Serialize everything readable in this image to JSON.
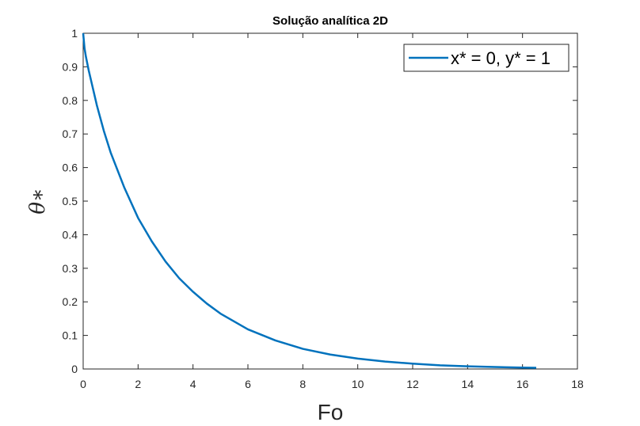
{
  "chart_data": {
    "type": "line",
    "title": "Solução analítica 2D",
    "xlabel": "Fo",
    "ylabel": "θ∗",
    "xlim": [
      0,
      18
    ],
    "ylim": [
      0,
      1
    ],
    "xticks": [
      0,
      2,
      4,
      6,
      8,
      10,
      12,
      14,
      16,
      18
    ],
    "yticks": [
      0,
      0.1,
      0.2,
      0.3,
      0.4,
      0.5,
      0.6,
      0.7,
      0.8,
      0.9,
      1
    ],
    "xtick_labels": [
      "0",
      "2",
      "4",
      "6",
      "8",
      "10",
      "12",
      "14",
      "16",
      "18"
    ],
    "ytick_labels": [
      "0",
      "0.1",
      "0.2",
      "0.3",
      "0.4",
      "0.5",
      "0.6",
      "0.7",
      "0.8",
      "0.9",
      "1"
    ],
    "grid": false,
    "legend_position": "top-right",
    "series": [
      {
        "name": "x* = 0, y* = 1",
        "color": "#0072BD",
        "x": [
          0,
          0.05,
          0.1,
          0.2,
          0.3,
          0.5,
          0.75,
          1,
          1.5,
          2,
          2.5,
          3,
          3.5,
          4,
          4.5,
          5,
          6,
          7,
          8,
          9,
          10,
          11,
          12,
          13,
          14,
          15,
          16,
          16.5
        ],
        "y": [
          1.0,
          0.955,
          0.93,
          0.89,
          0.855,
          0.785,
          0.71,
          0.645,
          0.54,
          0.45,
          0.38,
          0.32,
          0.27,
          0.23,
          0.195,
          0.165,
          0.118,
          0.085,
          0.06,
          0.043,
          0.031,
          0.022,
          0.016,
          0.011,
          0.008,
          0.006,
          0.004,
          0.0035
        ]
      }
    ]
  }
}
